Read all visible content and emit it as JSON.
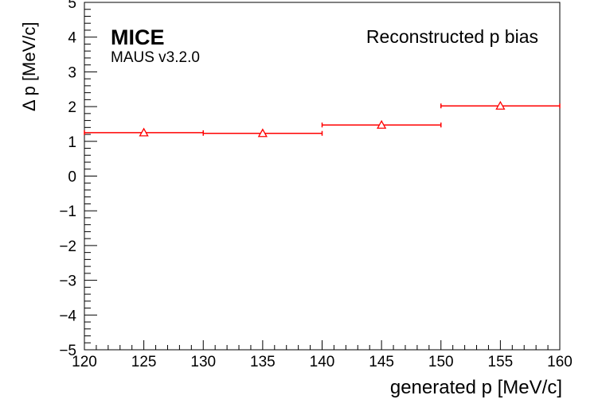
{
  "chart_data": {
    "type": "scatter",
    "title": "Reconstructed p bias",
    "xlabel": "generated p [MeV/c]",
    "ylabel": "Δ p  [MeV/c]",
    "xlim": [
      120,
      160
    ],
    "ylim": [
      -5,
      5
    ],
    "x_ticks": [
      "120",
      "125",
      "130",
      "135",
      "140",
      "145",
      "150",
      "155",
      "160"
    ],
    "y_ticks": [
      "−5",
      "−4",
      "−3",
      "−2",
      "−1",
      "0",
      "1",
      "2",
      "3",
      "4",
      "5"
    ],
    "x_tick_values": [
      120,
      125,
      130,
      135,
      140,
      145,
      150,
      155,
      160
    ],
    "y_tick_values": [
      -5,
      -4,
      -3,
      -2,
      -1,
      0,
      1,
      2,
      3,
      4,
      5
    ],
    "grid": false,
    "series": [
      {
        "marker": "open-triangle",
        "color": "#ff0000",
        "points": [
          {
            "x": 125,
            "y": 1.25,
            "xerr": 5
          },
          {
            "x": 135,
            "y": 1.23,
            "xerr": 5
          },
          {
            "x": 145,
            "y": 1.47,
            "xerr": 5
          },
          {
            "x": 155,
            "y": 2.02,
            "xerr": 5
          }
        ]
      }
    ]
  },
  "annotations": {
    "experiment": "MICE",
    "software": "MAUS v3.2.0"
  }
}
